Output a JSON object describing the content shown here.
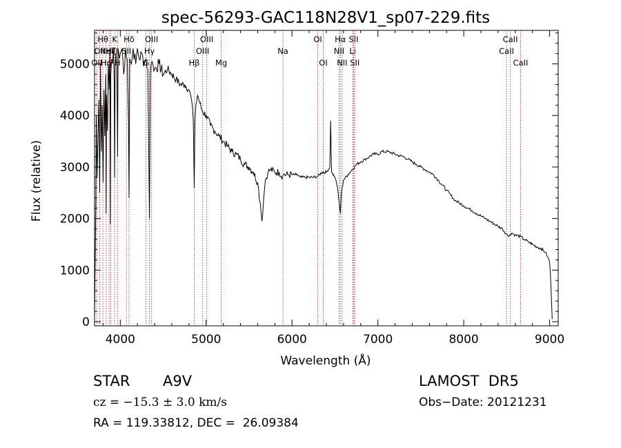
{
  "chart_data": {
    "type": "line",
    "title": "spec-56293-GAC118N28V1_sp07-229.fits",
    "xlabel": "Wavelength (Å)",
    "ylabel": "Flux (relative)",
    "xlim": [
      3700,
      9100
    ],
    "ylim": [
      -80,
      5650
    ],
    "xticks": [
      4000,
      5000,
      6000,
      7000,
      8000,
      9000
    ],
    "yticks": [
      0,
      1000,
      2000,
      3000,
      4000,
      5000
    ],
    "grid": false,
    "series": [
      {
        "x": [
          3700,
          3715,
          3720,
          3730,
          3740,
          3750,
          3760,
          3770,
          3780,
          3790,
          3800,
          3810,
          3820,
          3830,
          3835,
          3840,
          3850,
          3860,
          3870,
          3880,
          3885,
          3890,
          3900,
          3910,
          3920,
          3930,
          3934,
          3940,
          3950,
          3960,
          3968,
          3975,
          3990,
          4000,
          4020,
          4040,
          4060,
          4080,
          4095,
          4102,
          4110,
          4130,
          4150,
          4180,
          4200,
          4220,
          4250,
          4280,
          4300,
          4320,
          4330,
          4340,
          4350,
          4360,
          4380,
          4400,
          4450,
          4500,
          4550,
          4600,
          4650,
          4700,
          4750,
          4800,
          4830,
          4850,
          4861,
          4870,
          4880,
          4900,
          4950,
          5000,
          5050,
          5100,
          5150,
          5200,
          5250,
          5300,
          5350,
          5400,
          5450,
          5500,
          5550,
          5600,
          5630,
          5650,
          5670,
          5690,
          5720,
          5750,
          5800,
          5850,
          5890,
          5900,
          5950,
          6000,
          6050,
          6100,
          6150,
          6200,
          6250,
          6300,
          6350,
          6400,
          6440,
          6450,
          6460,
          6500,
          6530,
          6550,
          6563,
          6575,
          6600,
          6650,
          6700,
          6750,
          6800,
          6850,
          6900,
          6950,
          7000,
          7050,
          7100,
          7150,
          7200,
          7250,
          7300,
          7350,
          7400,
          7450,
          7500,
          7550,
          7600,
          7650,
          7700,
          7750,
          7800,
          7850,
          7900,
          7950,
          8000,
          8050,
          8100,
          8150,
          8200,
          8250,
          8300,
          8350,
          8400,
          8450,
          8498,
          8520,
          8542,
          8560,
          8600,
          8662,
          8700,
          8750,
          8800,
          8850,
          8900,
          8950,
          8980,
          9000,
          9010,
          9020,
          9030
        ],
        "y": [
          100,
          2300,
          4000,
          2800,
          3600,
          4300,
          2500,
          5000,
          3300,
          4200,
          2700,
          4500,
          3600,
          4800,
          2100,
          4400,
          3700,
          5000,
          4500,
          5300,
          1900,
          4800,
          5100,
          5000,
          5300,
          4600,
          2800,
          5000,
          5200,
          5000,
          3200,
          5300,
          5100,
          5200,
          5300,
          4800,
          5300,
          5100,
          3900,
          2400,
          5100,
          5000,
          5300,
          5000,
          5300,
          5100,
          5200,
          5000,
          5100,
          4900,
          3500,
          2000,
          4800,
          5000,
          5000,
          4900,
          5000,
          4800,
          4900,
          4800,
          4700,
          4600,
          4600,
          4500,
          4300,
          3900,
          2600,
          3900,
          4200,
          4400,
          4100,
          4000,
          3800,
          3700,
          3600,
          3500,
          3400,
          3300,
          3250,
          3150,
          3050,
          3000,
          2900,
          2700,
          2300,
          1950,
          2400,
          2750,
          2900,
          2950,
          2900,
          2900,
          2820,
          2850,
          2850,
          2850,
          2850,
          2800,
          2800,
          2800,
          2800,
          2820,
          2900,
          2900,
          3000,
          3900,
          2900,
          2800,
          2600,
          2300,
          2100,
          2500,
          2750,
          2850,
          2950,
          3050,
          3100,
          3150,
          3200,
          3250,
          3250,
          3300,
          3300,
          3280,
          3250,
          3220,
          3200,
          3150,
          3100,
          3050,
          3000,
          2950,
          2900,
          2850,
          2750,
          2650,
          2550,
          2450,
          2350,
          2300,
          2250,
          2200,
          2150,
          2100,
          2050,
          2000,
          1950,
          1900,
          1850,
          1800,
          1700,
          1650,
          1700,
          1720,
          1680,
          1650,
          1600,
          1550,
          1500,
          1450,
          1420,
          1350,
          1250,
          1150,
          900,
          500,
          50
        ]
      }
    ],
    "line_markers": [
      {
        "x": 3726,
        "label": "OII",
        "row": 3
      },
      {
        "x": 3760,
        "label": "OII",
        "row": 2
      },
      {
        "x": 3797,
        "label": "Hθ",
        "row": 1
      },
      {
        "x": 3835,
        "label": "Hη",
        "row": 3
      },
      {
        "x": 3869,
        "label": "NeIII",
        "row": 2
      },
      {
        "x": 3889,
        "label": "Hζ",
        "row": 2
      },
      {
        "x": 3934,
        "label": "K",
        "row": 1
      },
      {
        "x": 3968,
        "label": "H",
        "row": 3
      },
      {
        "x": 4072,
        "label": "SII",
        "row": 2
      },
      {
        "x": 4102,
        "label": "Hδ",
        "row": 1
      },
      {
        "x": 4300,
        "label": "G",
        "row": 3
      },
      {
        "x": 4340,
        "label": "Hγ",
        "row": 2
      },
      {
        "x": 4364,
        "label": "OIII",
        "row": 1
      },
      {
        "x": 4861,
        "label": "Hβ",
        "row": 3
      },
      {
        "x": 4959,
        "label": "OIII",
        "row": 2
      },
      {
        "x": 5007,
        "label": "OIII",
        "row": 1
      },
      {
        "x": 5175,
        "label": "Mg",
        "row": 3
      },
      {
        "x": 5894,
        "label": "Na",
        "row": 2
      },
      {
        "x": 6300,
        "label": "OI",
        "row": 1
      },
      {
        "x": 6364,
        "label": "OI",
        "row": 3
      },
      {
        "x": 6548,
        "label": "NII",
        "row": 2
      },
      {
        "x": 6563,
        "label": "Hα",
        "row": 1
      },
      {
        "x": 6584,
        "label": "NII",
        "row": 3
      },
      {
        "x": 6707,
        "label": "Li",
        "row": 2
      },
      {
        "x": 6717,
        "label": "SII",
        "row": 1
      },
      {
        "x": 6731,
        "label": "SII",
        "row": 3
      },
      {
        "x": 8498,
        "label": "CaII",
        "row": 2
      },
      {
        "x": 8542,
        "label": "CaII",
        "row": 1
      },
      {
        "x": 8662,
        "label": "CaII",
        "row": 3
      }
    ]
  },
  "info": {
    "class_label": "STAR",
    "subclass": "A9V",
    "survey": "LAMOST  DR5",
    "velocity": "cz = −15.3 ± 3.0 km/s",
    "obs_date": "Obs−Date: 20121231",
    "coords": "RA = 119.33812, DEC =  26.09384"
  }
}
